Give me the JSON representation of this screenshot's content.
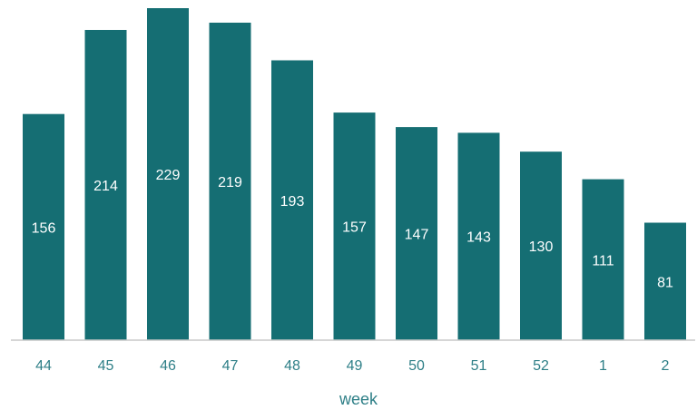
{
  "chart_data": {
    "type": "bar",
    "categories": [
      "44",
      "45",
      "46",
      "47",
      "48",
      "49",
      "50",
      "51",
      "52",
      "1",
      "2"
    ],
    "values": [
      156,
      214,
      229,
      219,
      193,
      157,
      147,
      143,
      130,
      111,
      81
    ],
    "title": "",
    "xlabel": "week",
    "ylabel": "",
    "ylim": [
      0,
      229
    ],
    "grid": false,
    "legend": "none",
    "bar_color": "#156E73",
    "label_color": "#FFFFFF",
    "tick_color": "#2E7F87"
  }
}
